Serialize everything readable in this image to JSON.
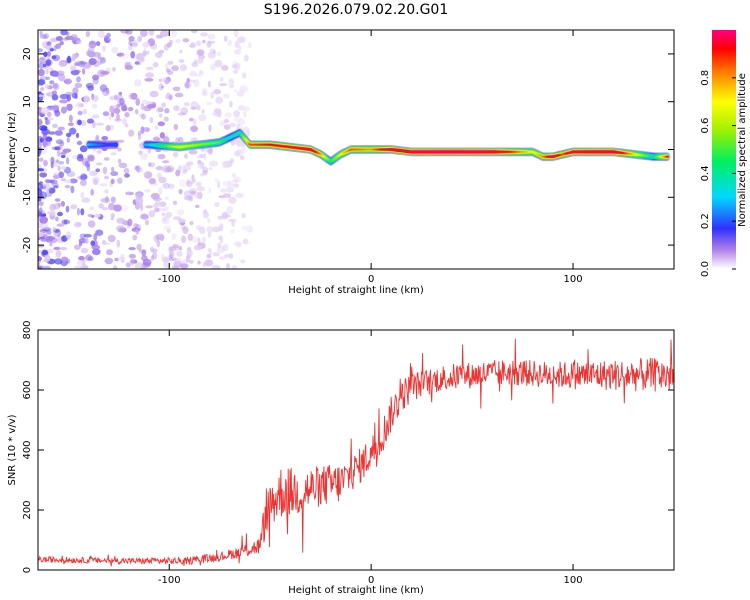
{
  "figure_title": "S196.2026.079.02.20.G01",
  "colors": {
    "frame": "#000000",
    "snr_line": "#ee3333",
    "scatter_purple": "#8a2be2",
    "scatter_light": "#d8c8f0"
  },
  "chart_data": [
    {
      "type": "heatmap",
      "title": "",
      "xlabel": "Height of straight line (km)",
      "ylabel": "Frequency (Hz)",
      "xlim": [
        -165,
        150
      ],
      "ylim": [
        -25,
        25
      ],
      "xticks": [
        -100,
        0,
        100
      ],
      "yticks": [
        -20,
        -10,
        0,
        10,
        20
      ],
      "xtick_labels": [
        "-100",
        "0",
        "100"
      ],
      "ytick_labels": [
        "-20",
        "-10",
        "0",
        "10",
        "20"
      ],
      "band_trace": {
        "x": [
          -140,
          -130,
          -110,
          -95,
          -85,
          -75,
          -70,
          -65,
          -60,
          -50,
          -40,
          -30,
          -25,
          -20,
          -15,
          -10,
          0,
          10,
          20,
          40,
          60,
          80,
          85,
          90,
          95,
          100,
          120,
          140,
          147
        ],
        "freq": [
          1,
          1,
          1,
          0.5,
          1,
          1.5,
          2.5,
          3.5,
          1,
          1,
          0.5,
          0,
          -1,
          -2.5,
          -1,
          0,
          0,
          0,
          -0.5,
          -0.5,
          -0.5,
          -0.5,
          -1.5,
          -1.5,
          -1,
          -0.5,
          -0.5,
          -1.5,
          -1.5
        ],
        "amplitude": [
          0.25,
          0.15,
          0.25,
          0.6,
          0.5,
          0.45,
          0.3,
          0.35,
          0.75,
          0.8,
          0.85,
          0.9,
          0.7,
          0.4,
          0.6,
          0.75,
          0.7,
          0.9,
          0.95,
          1.0,
          0.95,
          0.6,
          0.7,
          0.9,
          0.75,
          0.9,
          0.95,
          0.35,
          0.8
        ]
      }
    },
    {
      "type": "colorbar",
      "label": "Normalized spectral amplitude",
      "range": [
        0,
        1
      ],
      "ticks": [
        0.0,
        0.2,
        0.4,
        0.6,
        0.8
      ],
      "tick_labels": [
        "0.0",
        "0.2",
        "0.4",
        "0.6",
        "0.8"
      ]
    },
    {
      "type": "line",
      "title": "",
      "xlabel": "Height of straight line (km)",
      "ylabel": "SNR (10 * v/v)",
      "xlim": [
        -165,
        150
      ],
      "ylim": [
        0,
        800
      ],
      "xticks": [
        -100,
        0,
        100
      ],
      "yticks": [
        0,
        200,
        400,
        600,
        800
      ],
      "xtick_labels": [
        "-100",
        "0",
        "100"
      ],
      "ytick_labels": [
        "0",
        "200",
        "400",
        "600",
        "800"
      ],
      "series": [
        {
          "name": "SNR",
          "trend_x": [
            -165,
            -120,
            -90,
            -75,
            -65,
            -55,
            -52,
            -45,
            -35,
            -25,
            -15,
            -10,
            -5,
            0,
            5,
            10,
            15,
            20,
            25,
            35,
            50,
            70,
            90,
            110,
            130,
            150
          ],
          "trend_y": [
            35,
            30,
            30,
            45,
            60,
            80,
            200,
            260,
            260,
            280,
            290,
            320,
            350,
            390,
            440,
            520,
            580,
            610,
            620,
            640,
            650,
            660,
            650,
            650,
            650,
            650
          ],
          "noise_amplitude": [
            10,
            10,
            12,
            15,
            20,
            30,
            80,
            90,
            80,
            70,
            70,
            60,
            60,
            60,
            60,
            60,
            55,
            50,
            45,
            45,
            45,
            45,
            45,
            50,
            55,
            60
          ]
        }
      ]
    }
  ]
}
